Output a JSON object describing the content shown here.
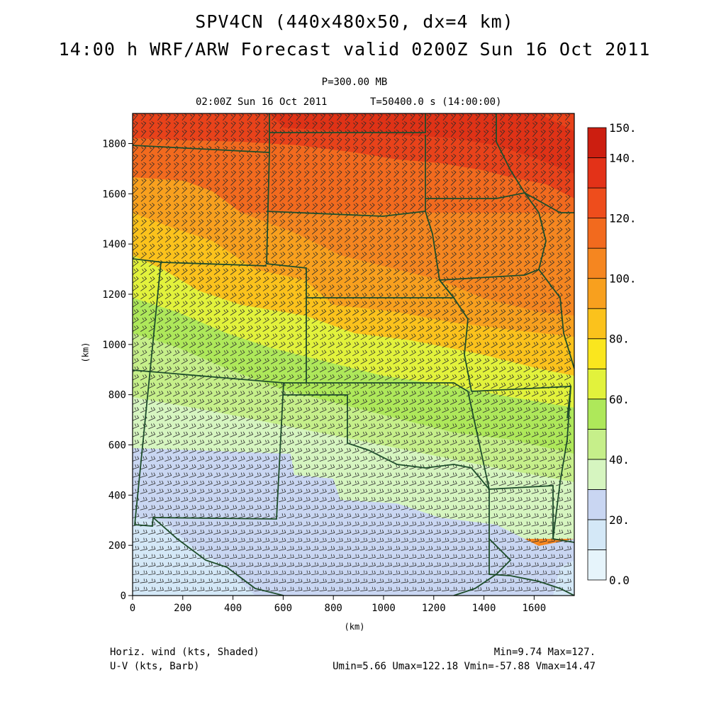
{
  "title": {
    "line1": "SPV4CN (440x480x50, dx=4 km)",
    "line2": "14:00 h WRF/ARW Forecast valid 0200Z Sun 16 Oct 2011"
  },
  "subtitle": {
    "pressure_level": "P=300.00 MB",
    "valid_time": "02:00Z Sun 16 Oct 2011",
    "model_time": "T=50400.0 s (14:00:00)"
  },
  "axes": {
    "x_label": "(km)",
    "y_label": "(km)",
    "x_ticks": [
      "0",
      "200",
      "400",
      "600",
      "800",
      "1000",
      "1200",
      "1400",
      "1600"
    ],
    "y_ticks": [
      "0",
      "200",
      "400",
      "600",
      "800",
      "1000",
      "1200",
      "1400",
      "1600",
      "1800"
    ],
    "x_range": [
      0,
      1760
    ],
    "y_range": [
      0,
      1920
    ]
  },
  "colorbar": {
    "labels": [
      "0.0",
      "20.",
      "40.",
      "60.",
      "80.",
      "100.",
      "120.",
      "140.",
      "150."
    ],
    "levels": [
      0,
      10,
      20,
      30,
      40,
      50,
      60,
      70,
      80,
      90,
      100,
      110,
      120,
      130,
      140,
      150
    ],
    "colors": [
      "#e6f4fb",
      "#d4e8f7",
      "#c9d6f2",
      "#d6f5c0",
      "#c6ef8a",
      "#aee85a",
      "#e2f23c",
      "#fae61e",
      "#fbc21c",
      "#f8a01e",
      "#f58620",
      "#f26a1e",
      "#ee4d1c",
      "#e33218",
      "#cc1e10"
    ]
  },
  "legend": {
    "shaded": "Horiz. wind (kts, Shaded)",
    "barb": "U-V (kts, Barb)"
  },
  "stats": {
    "line1": "Min=9.74 Max=127.",
    "line2": "Umin=5.66 Umax=122.18 Vmin=-57.88 Vmax=14.47"
  }
}
